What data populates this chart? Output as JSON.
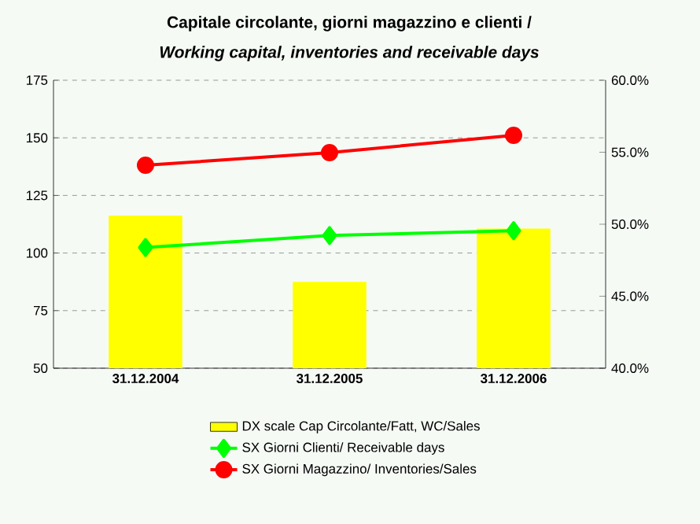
{
  "chart_data": {
    "type": "bar",
    "title": "Capitale circolante, giorni magazzino e clienti /",
    "subtitle": "Working capital, inventories and receivable days",
    "categories": [
      "31.12.2004",
      "31.12.2005",
      "31.12.2006"
    ],
    "series": [
      {
        "name": "DX scale Cap Circolante/Fatt, WC/Sales",
        "axis": "y2",
        "color": "#ffff00",
        "values": [
          50.6,
          46.0,
          49.7
        ]
      },
      {
        "name": "SX Giorni Clienti/ Receivable days",
        "type": "line",
        "color": "#00ff00",
        "marker": "diamond",
        "values": [
          102.4,
          107.6,
          109.7
        ]
      },
      {
        "name": "SX Giorni Magazzino/ Inventories/Sales",
        "type": "line",
        "color": "#ff0000",
        "marker": "circle",
        "values": [
          138.1,
          143.6,
          151.1
        ]
      }
    ],
    "ylim": [
      50,
      175
    ],
    "yticks": [
      50,
      75,
      100,
      125,
      150,
      175
    ],
    "y2lim": [
      40,
      60
    ],
    "y2ticks": [
      {
        "value": 40,
        "label": "40.0%"
      },
      {
        "value": 45,
        "label": "45.0%"
      },
      {
        "value": 50,
        "label": "50.0%"
      },
      {
        "value": 55,
        "label": "55.0%"
      },
      {
        "value": 60,
        "label": "60.0%"
      }
    ],
    "grid": "y",
    "legend": "bottom"
  }
}
